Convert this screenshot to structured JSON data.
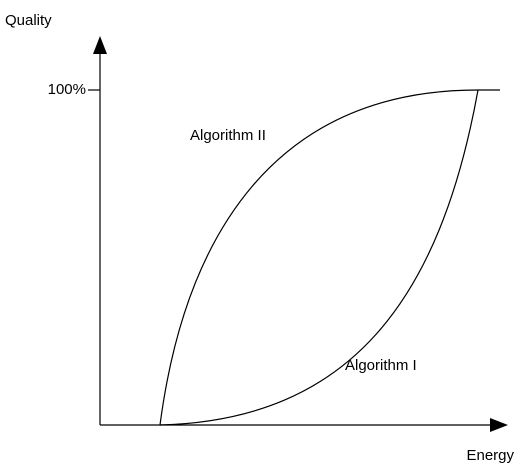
{
  "axes": {
    "y_label": "Quality",
    "x_label": "Energy",
    "y_tick": "100%"
  },
  "curves": [
    {
      "label": "Algorithm II"
    },
    {
      "label": "Algorithm I"
    }
  ]
}
